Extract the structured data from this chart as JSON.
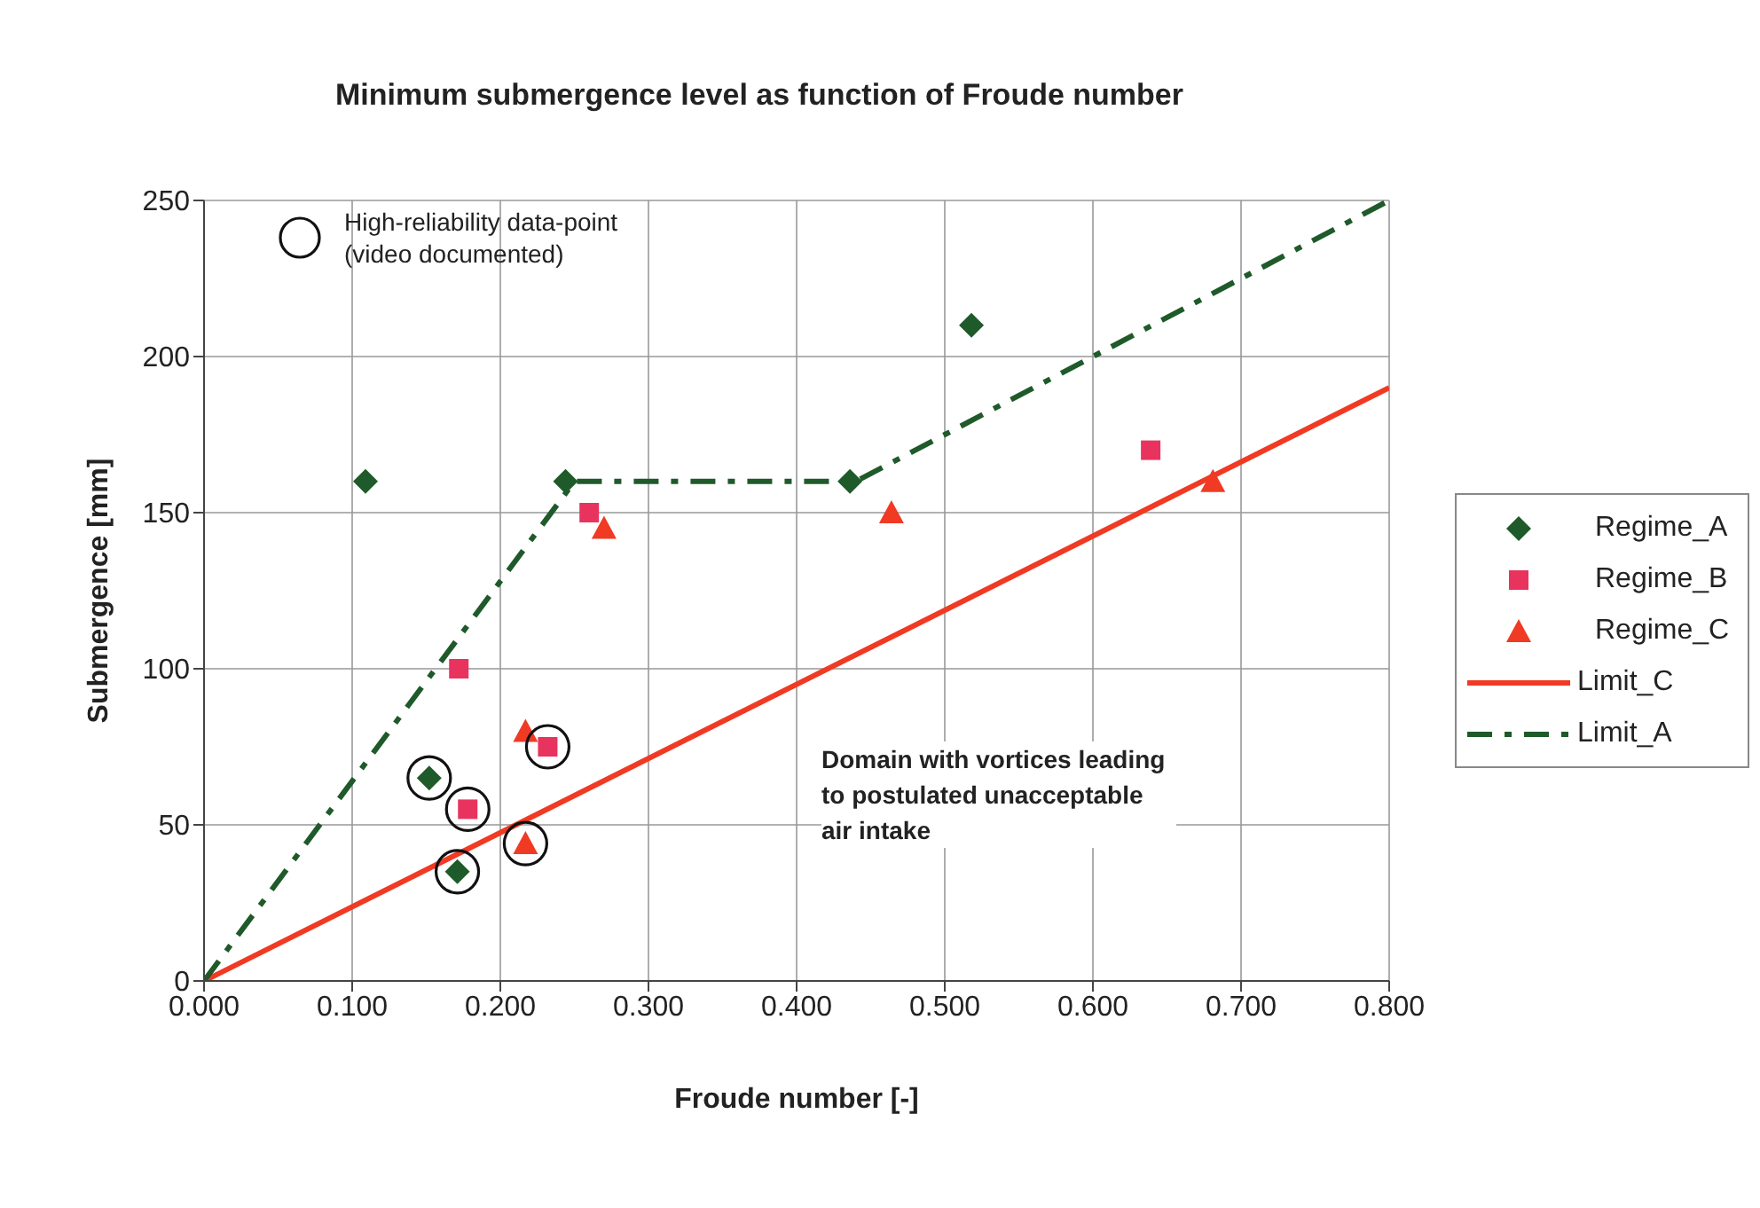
{
  "chart_data": {
    "type": "scatter",
    "title": "Minimum submergence level as function of Froude number",
    "xlabel": "Froude number [-]",
    "ylabel": "Submergence [mm]",
    "xlim": [
      0,
      0.8
    ],
    "xticks": [
      {
        "value": 0,
        "label": "0.000"
      },
      {
        "value": 0.1,
        "label": "0.100"
      },
      {
        "value": 0.2,
        "label": "0.200"
      },
      {
        "value": 0.3,
        "label": "0.300"
      },
      {
        "value": 0.4,
        "label": "0.400"
      },
      {
        "value": 0.5,
        "label": "0.500"
      },
      {
        "value": 0.6,
        "label": "0.600"
      },
      {
        "value": 0.7,
        "label": "0.700"
      },
      {
        "value": 0.8,
        "label": "0.800"
      }
    ],
    "ylim": [
      0,
      250
    ],
    "yticks": [
      0,
      50,
      100,
      150,
      200,
      250
    ],
    "grid": true,
    "legend": "right",
    "series": [
      {
        "type": "scatter",
        "name": "Regime_A",
        "color": "#1f5a2a",
        "marker": "diamond",
        "x": [
          0.109,
          0.152,
          0.171,
          0.244,
          0.436,
          0.518
        ],
        "values": [
          160,
          65,
          35,
          160,
          160,
          210
        ]
      },
      {
        "type": "scatter",
        "name": "Regime_B",
        "color": "#e8335e",
        "marker": "square",
        "x": [
          0.172,
          0.178,
          0.232,
          0.26,
          0.639
        ],
        "values": [
          100,
          55,
          75,
          150,
          170
        ]
      },
      {
        "type": "scatter",
        "name": "Regime_C",
        "color": "#f03a24",
        "marker": "triangle",
        "x": [
          0.217,
          0.217,
          0.27,
          0.464,
          0.681
        ],
        "values": [
          80,
          44,
          145,
          150,
          160
        ]
      },
      {
        "type": "line",
        "name": "Limit_C",
        "color": "#f03a24",
        "marker": "none",
        "line_style": "solid",
        "x": [
          0,
          0.8
        ],
        "values": [
          0,
          190
        ]
      },
      {
        "type": "line",
        "name": "Limit_A",
        "color": "#1f5a2a",
        "marker": "none",
        "line_style": "dashed",
        "x": [
          0,
          0.25,
          0.44,
          0.8
        ],
        "values": [
          0,
          160,
          160,
          250
        ]
      },
      {
        "type": "scatter",
        "name": "High-reliability data-point (video documented)",
        "color": "#111111",
        "marker": "circle",
        "x": [
          0.152,
          0.171,
          0.178,
          0.232,
          0.217
        ],
        "values": [
          65,
          35,
          55,
          75,
          44
        ]
      }
    ],
    "annotations": [
      "Domain with vortices leading to postulated unacceptable air intake"
    ]
  }
}
